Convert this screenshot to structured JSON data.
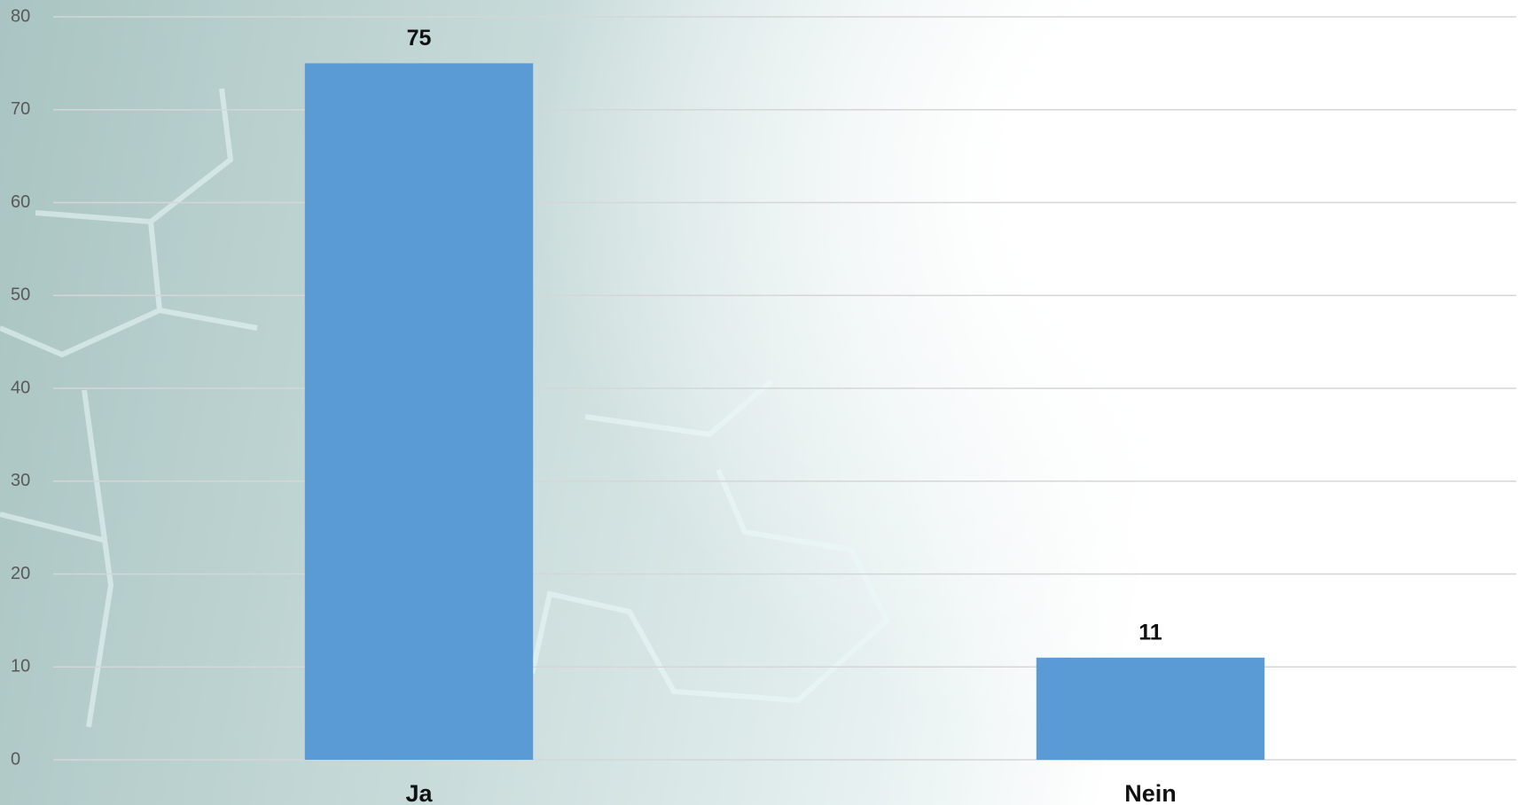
{
  "chart_data": {
    "type": "bar",
    "categories": [
      "Ja",
      "Nein"
    ],
    "values": [
      75,
      11
    ],
    "color": "#5b9bd5",
    "ylim": [
      0,
      80
    ],
    "yticks": [
      0,
      10,
      20,
      30,
      40,
      50,
      60,
      70,
      80
    ],
    "grid": true
  }
}
